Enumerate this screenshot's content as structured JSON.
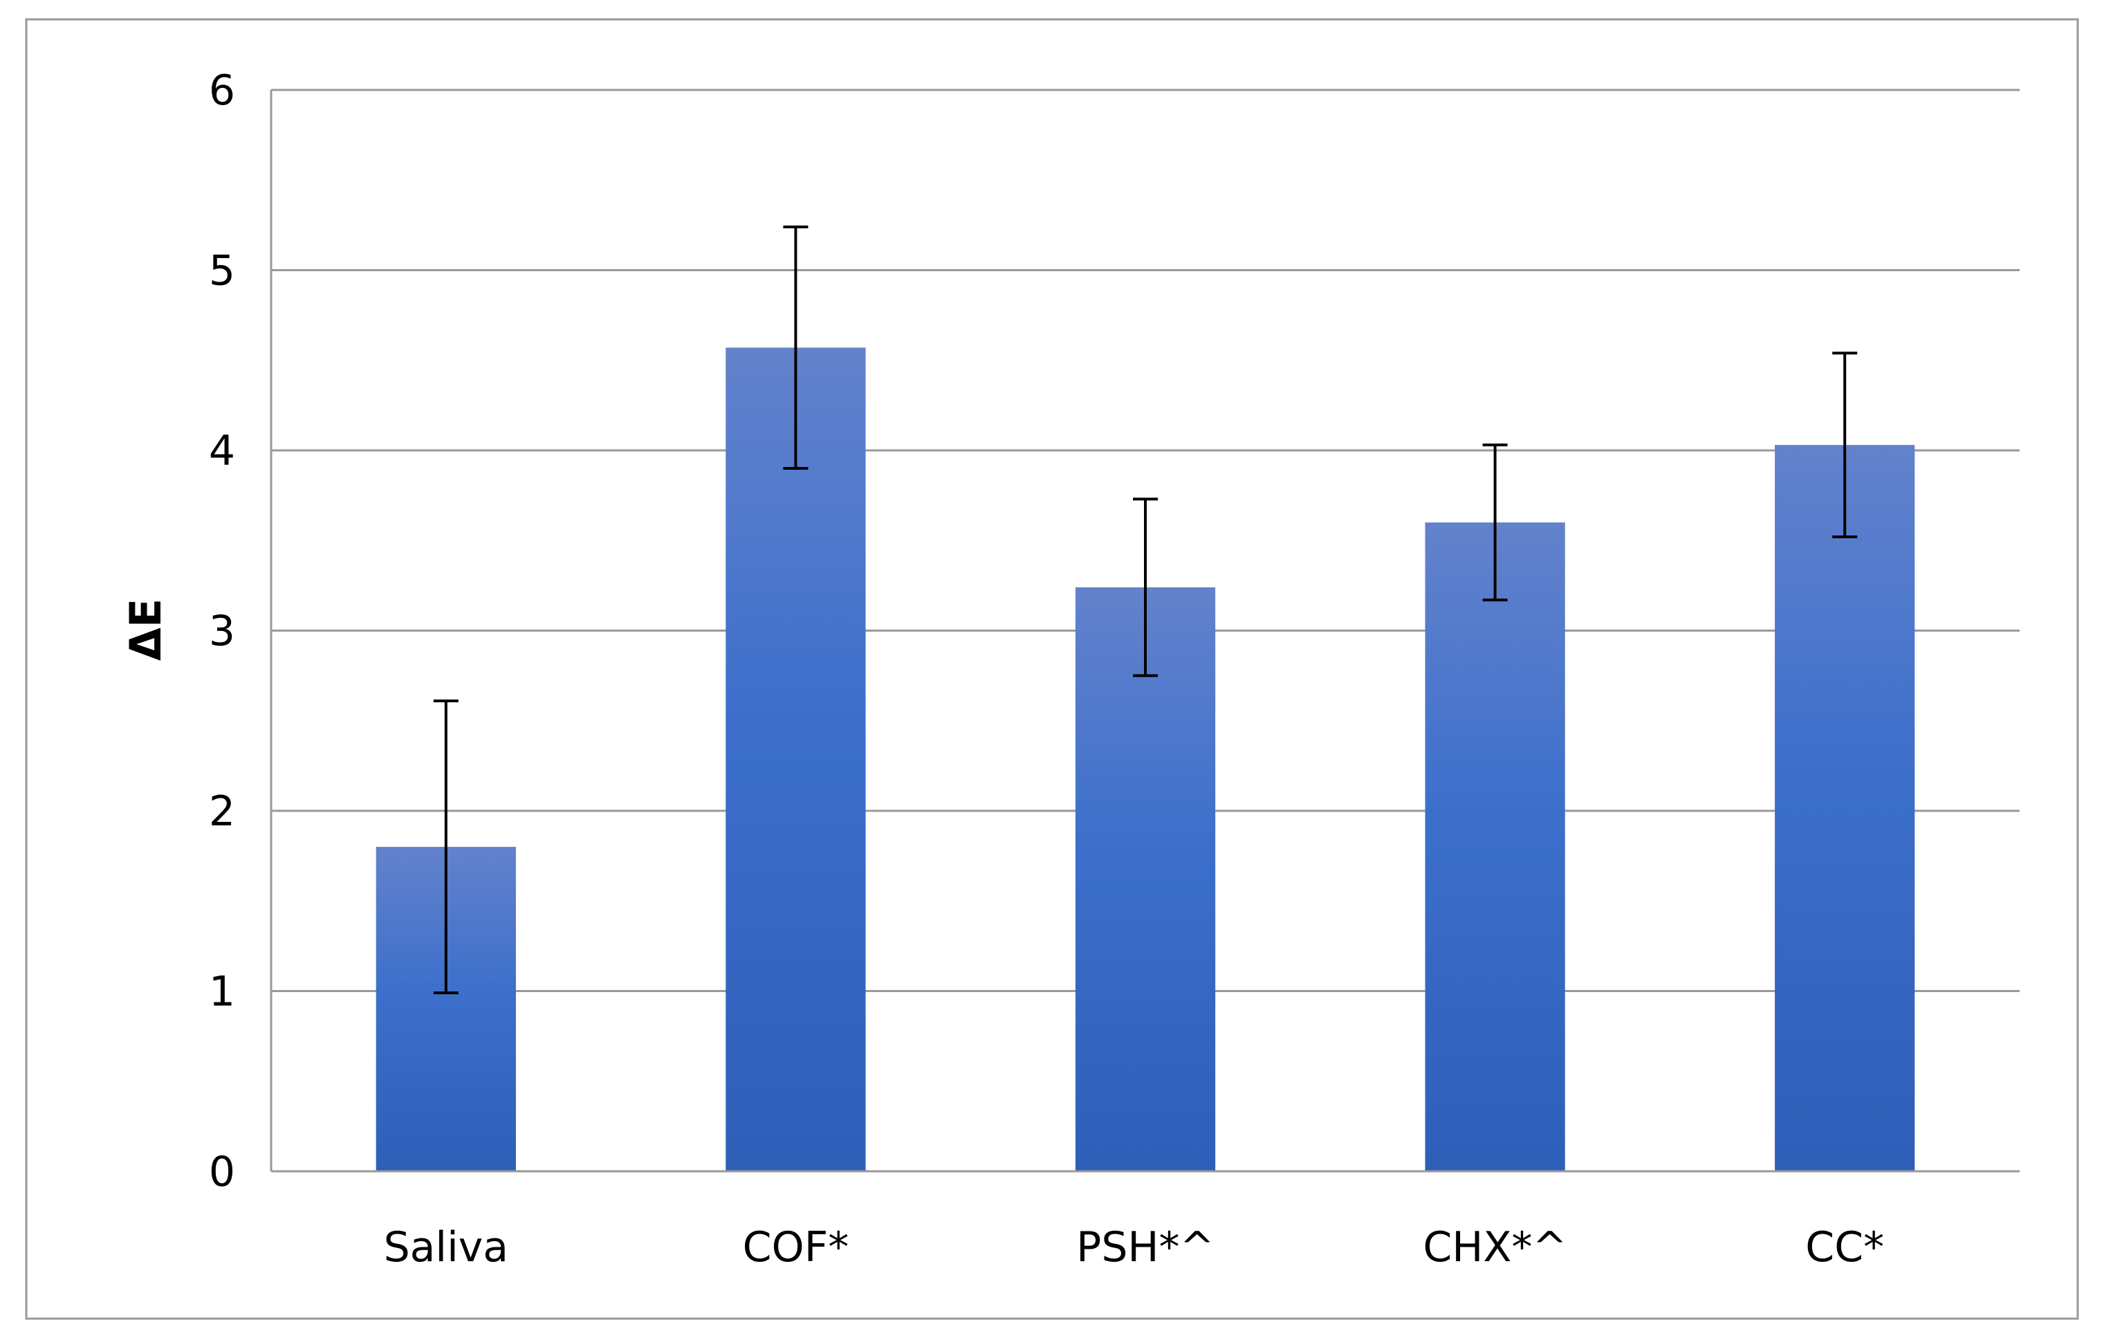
{
  "chart_data": {
    "type": "bar",
    "title": "",
    "xlabel": "",
    "ylabel": "ΔE",
    "ylim": [
      0,
      6
    ],
    "y_ticks": [
      "0",
      "1",
      "2",
      "3",
      "4",
      "5",
      "6"
    ],
    "grid": true,
    "legend": "none",
    "categories": [
      "Saliva",
      "COF*",
      "PSH*^",
      "CHX*^",
      "CC*"
    ],
    "values": [
      1.8,
      4.57,
      3.24,
      3.6,
      4.03
    ],
    "error_bars": [
      0.81,
      0.67,
      0.49,
      0.43,
      0.51
    ],
    "colors": {
      "bar_top": "#6382cc",
      "bar_bottom": "#2e5fb8",
      "gridline": "#999999",
      "frame": "#999999",
      "error_bar": "#000000"
    }
  }
}
